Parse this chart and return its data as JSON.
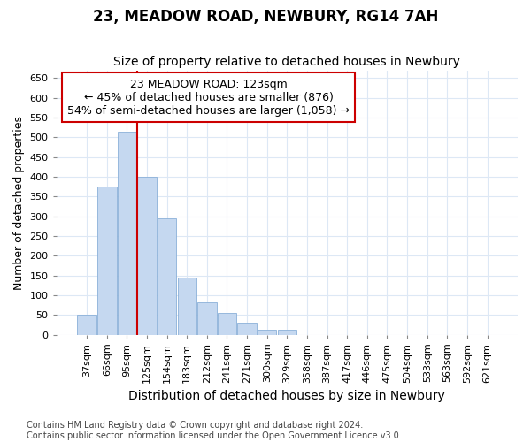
{
  "title": "23, MEADOW ROAD, NEWBURY, RG14 7AH",
  "subtitle": "Size of property relative to detached houses in Newbury",
  "xlabel": "Distribution of detached houses by size in Newbury",
  "ylabel": "Number of detached properties",
  "categories": [
    "37sqm",
    "66sqm",
    "95sqm",
    "125sqm",
    "154sqm",
    "183sqm",
    "212sqm",
    "241sqm",
    "271sqm",
    "300sqm",
    "329sqm",
    "358sqm",
    "387sqm",
    "417sqm",
    "446sqm",
    "475sqm",
    "504sqm",
    "533sqm",
    "563sqm",
    "592sqm",
    "621sqm"
  ],
  "values": [
    50,
    375,
    515,
    400,
    295,
    145,
    82,
    55,
    30,
    13,
    12,
    0,
    0,
    0,
    0,
    0,
    0,
    0,
    0,
    0,
    0
  ],
  "bar_color": "#c5d8f0",
  "bar_edge_color": "#8ab0d8",
  "annotation_box_color": "#cc0000",
  "annotation_text_line1": "23 MEADOW ROAD: 123sqm",
  "annotation_text_line2": "← 45% of detached houses are smaller (876)",
  "annotation_text_line3": "54% of semi-detached houses are larger (1,058) →",
  "red_line_x": 2.5,
  "ylim": [
    0,
    670
  ],
  "yticks": [
    0,
    50,
    100,
    150,
    200,
    250,
    300,
    350,
    400,
    450,
    500,
    550,
    600,
    650
  ],
  "footer_line1": "Contains HM Land Registry data © Crown copyright and database right 2024.",
  "footer_line2": "Contains public sector information licensed under the Open Government Licence v3.0.",
  "background_color": "#ffffff",
  "grid_color": "#dde8f5",
  "title_fontsize": 12,
  "subtitle_fontsize": 10,
  "xlabel_fontsize": 10,
  "ylabel_fontsize": 9,
  "tick_fontsize": 8,
  "annotation_fontsize": 9,
  "footer_fontsize": 7
}
